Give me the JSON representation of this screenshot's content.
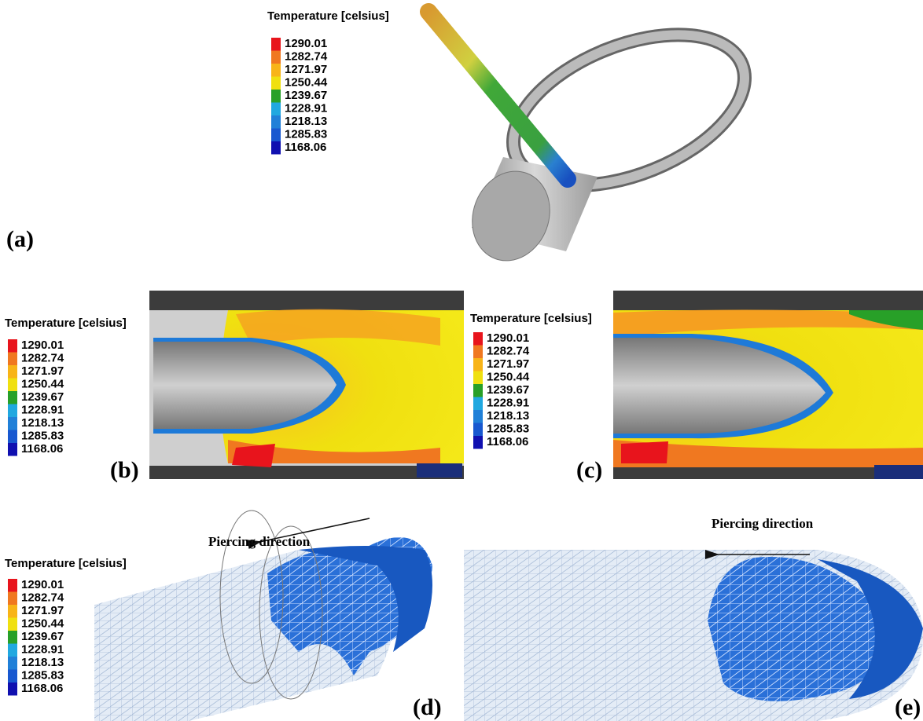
{
  "legend": {
    "title": "Temperature [celsius]",
    "entries": [
      {
        "label": "1290.01",
        "color": "#e8141c"
      },
      {
        "label": "1282.74",
        "color": "#f07820"
      },
      {
        "label": "1271.97",
        "color": "#f8b418"
      },
      {
        "label": "1250.44",
        "color": "#f0e010"
      },
      {
        "label": "1239.67",
        "color": "#28a028"
      },
      {
        "label": "1228.91",
        "color": "#20a8e0"
      },
      {
        "label": "1218.13",
        "color": "#2080d8"
      },
      {
        "label": "1285.83",
        "color": "#1858d0"
      },
      {
        "label": "1168.06",
        "color": "#1010b0"
      }
    ]
  },
  "panels": [
    {
      "label": "(a)"
    },
    {
      "label": "(b)"
    },
    {
      "label": "(c)"
    },
    {
      "label": "(d)"
    },
    {
      "label": "(e)"
    }
  ],
  "annotations": [
    "Piercing direction",
    "Piercing direction"
  ]
}
